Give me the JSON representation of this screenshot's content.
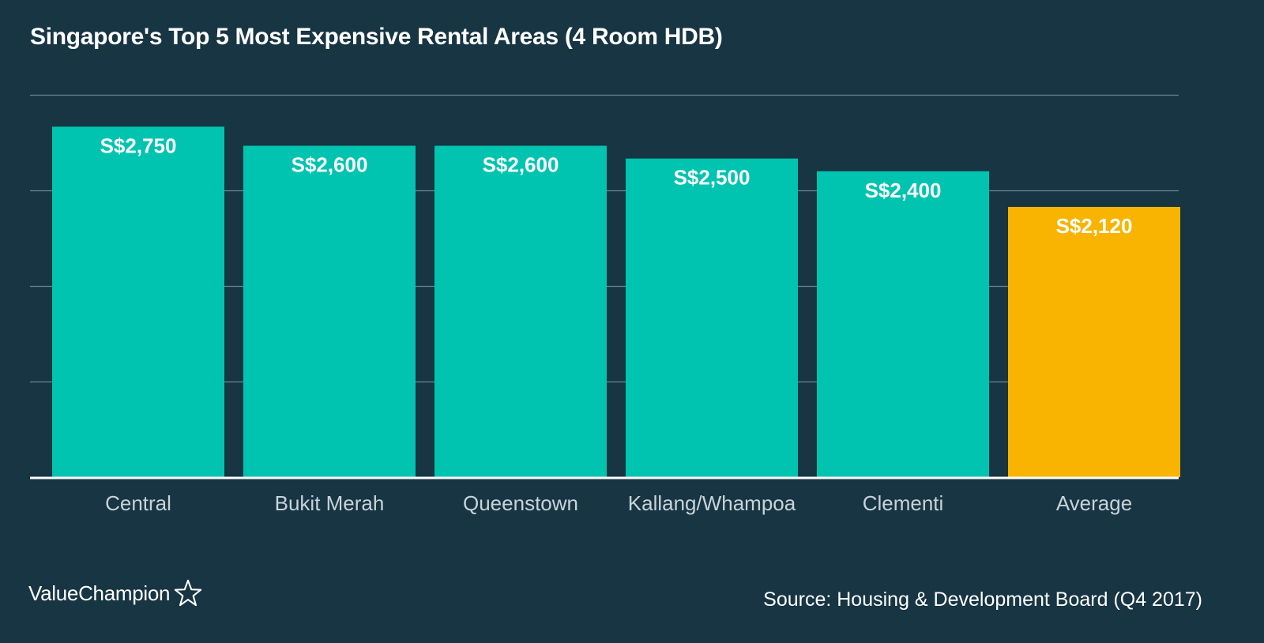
{
  "logo": {
    "text": "ValueChampion",
    "icon": "star-outline-icon"
  },
  "source": "Source: Housing & Development Board (Q4 2017)",
  "colors": {
    "background": "#173543",
    "bar": "#00c4b0",
    "highlight": "#f8b400",
    "grid": "#6b8793",
    "baseline": "#ffffff",
    "category_label": "#c9d3d8"
  },
  "chart_data": {
    "type": "bar",
    "title": "Singapore's Top 5 Most Expensive Rental Areas (4 Room HDB)",
    "xlabel": "",
    "ylabel": "",
    "categories": [
      "Central",
      "Bukit Merah",
      "Queenstown",
      "Kallang/Whampoa",
      "Clementi",
      "Average"
    ],
    "values": [
      2750,
      2600,
      2600,
      2500,
      2400,
      2120
    ],
    "data_labels": [
      "S$2,750",
      "S$2,600",
      "S$2,600",
      "S$2,500",
      "S$2,400",
      "S$2,120"
    ],
    "highlight_category": "Average",
    "ylim": [
      0,
      3000
    ],
    "grid": true,
    "y_tick_labels_shown": false
  }
}
